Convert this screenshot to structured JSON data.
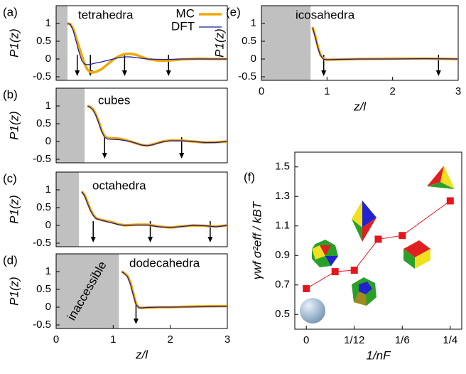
{
  "chart_data": [
    {
      "type": "line",
      "panel_label": "(a)",
      "title": "tetrahedra",
      "y_label": "P1(z)",
      "xlim": [
        0,
        3
      ],
      "ylim": [
        -0.6,
        1.5
      ],
      "yticks": [
        -0.5,
        0,
        0.5,
        1
      ],
      "excluded_region": [
        0,
        0.2
      ],
      "arrows": [
        0.37,
        0.6,
        1.2,
        1.97
      ],
      "legend": "upper right",
      "x": [
        0.2,
        0.25,
        0.3,
        0.35,
        0.4,
        0.45,
        0.5,
        0.55,
        0.6,
        0.65,
        0.7,
        0.8,
        0.9,
        1.0,
        1.1,
        1.2,
        1.3,
        1.4,
        1.5,
        1.6,
        1.8,
        2.0,
        2.2,
        2.5,
        2.8,
        3.0
      ],
      "series": [
        {
          "name": "MC",
          "color": "#f0a800",
          "values": [
            1.0,
            0.98,
            0.85,
            0.6,
            0.35,
            0.1,
            -0.15,
            -0.3,
            -0.37,
            -0.38,
            -0.36,
            -0.28,
            -0.15,
            -0.02,
            0.08,
            0.14,
            0.15,
            0.12,
            0.06,
            0.0,
            -0.05,
            -0.04,
            -0.01,
            0.01,
            0.0,
            0.0
          ]
        },
        {
          "name": "DFT",
          "color": "#1a1aa0",
          "values": [
            1.0,
            0.97,
            0.8,
            0.5,
            0.2,
            -0.05,
            -0.14,
            -0.16,
            -0.15,
            -0.13,
            -0.11,
            -0.08,
            -0.04,
            0.0,
            0.04,
            0.06,
            0.06,
            0.04,
            0.02,
            0.0,
            -0.01,
            -0.01,
            0.0,
            0.0,
            0.0,
            0.0
          ]
        }
      ]
    },
    {
      "type": "line",
      "panel_label": "(b)",
      "title": "cubes",
      "y_label": "P1(z)",
      "xlim": [
        0,
        3
      ],
      "ylim": [
        -0.6,
        1.5
      ],
      "yticks": [
        -0.5,
        0,
        0.5,
        1
      ],
      "excluded_region": [
        0,
        0.5
      ],
      "arrows": [
        0.85,
        2.2
      ],
      "x": [
        0.55,
        0.6,
        0.65,
        0.7,
        0.75,
        0.8,
        0.85,
        0.9,
        1.0,
        1.1,
        1.2,
        1.3,
        1.4,
        1.5,
        1.6,
        1.7,
        1.8,
        1.9,
        2.0,
        2.2,
        2.4,
        2.6,
        2.8,
        3.0
      ],
      "series": [
        {
          "color": "#f0a800",
          "values": [
            1.0,
            0.97,
            0.9,
            0.75,
            0.55,
            0.3,
            0.15,
            0.1,
            0.09,
            0.08,
            0.05,
            0.0,
            -0.05,
            -0.1,
            -0.11,
            -0.08,
            -0.03,
            0.01,
            0.03,
            0.03,
            0.0,
            -0.03,
            -0.02,
            0.0
          ]
        },
        {
          "color": "#1a1aa0",
          "values": [
            1.0,
            0.96,
            0.88,
            0.72,
            0.5,
            0.28,
            0.12,
            0.07,
            0.06,
            0.05,
            0.03,
            0.0,
            -0.05,
            -0.1,
            -0.12,
            -0.09,
            -0.04,
            0.0,
            0.02,
            0.02,
            0.0,
            -0.03,
            -0.03,
            0.0
          ]
        }
      ]
    },
    {
      "type": "line",
      "panel_label": "(c)",
      "title": "octahedra",
      "y_label": "P1(z)",
      "xlim": [
        0,
        3
      ],
      "ylim": [
        -0.6,
        1.5
      ],
      "yticks": [
        -0.5,
        0,
        0.5,
        1
      ],
      "excluded_region": [
        0,
        0.4
      ],
      "arrows": [
        0.65,
        1.65,
        2.7
      ],
      "x": [
        0.45,
        0.5,
        0.55,
        0.6,
        0.65,
        0.7,
        0.8,
        0.9,
        1.0,
        1.1,
        1.2,
        1.4,
        1.6,
        1.8,
        2.0,
        2.2,
        2.4,
        2.6,
        2.8,
        3.0
      ],
      "series": [
        {
          "color": "#f0a800",
          "values": [
            0.95,
            0.85,
            0.65,
            0.45,
            0.3,
            0.2,
            0.15,
            0.12,
            0.08,
            0.03,
            0.0,
            0.02,
            0.02,
            -0.03,
            -0.06,
            -0.03,
            0.0,
            -0.01,
            -0.03,
            0.0
          ]
        },
        {
          "color": "#1a1aa0",
          "values": [
            0.95,
            0.83,
            0.62,
            0.42,
            0.28,
            0.19,
            0.14,
            0.1,
            0.06,
            0.02,
            0.0,
            0.01,
            0.01,
            -0.04,
            -0.06,
            -0.03,
            0.0,
            -0.01,
            -0.04,
            0.0
          ]
        }
      ]
    },
    {
      "type": "line",
      "panel_label": "(d)",
      "title": "dodecahedra",
      "region_label": "inaccessible",
      "y_label": "P1(z)",
      "x_label": "z/l",
      "xlim": [
        0,
        3
      ],
      "ylim": [
        -0.6,
        1.5
      ],
      "xticks": [
        0,
        1,
        2,
        3
      ],
      "yticks": [
        -0.5,
        0,
        0.5,
        1
      ],
      "excluded_region": [
        0,
        1.1
      ],
      "arrows": [
        1.4
      ],
      "x": [
        1.15,
        1.2,
        1.25,
        1.3,
        1.35,
        1.4,
        1.45,
        1.5,
        1.6,
        1.8,
        2.0,
        2.5,
        3.0
      ],
      "series": [
        {
          "color": "#f0a800",
          "values": [
            1.0,
            0.95,
            0.88,
            0.7,
            0.4,
            0.1,
            -0.01,
            -0.02,
            -0.01,
            0.0,
            0.0,
            0.02,
            0.03
          ]
        },
        {
          "color": "#1a1aa0",
          "values": [
            1.0,
            0.94,
            0.86,
            0.66,
            0.35,
            0.07,
            -0.02,
            -0.02,
            -0.01,
            0.0,
            0.0,
            0.01,
            0.02
          ]
        }
      ]
    },
    {
      "type": "line",
      "panel_label": "(e)",
      "title": "icosahedra",
      "y_label": "P1(z)",
      "x_label": "z/l",
      "xlim": [
        0,
        3
      ],
      "ylim": [
        -0.6,
        1.5
      ],
      "xticks": [
        0,
        1,
        2,
        3
      ],
      "yticks": [
        -0.5,
        0,
        0.5,
        1
      ],
      "excluded_region": [
        0,
        0.75
      ],
      "arrows": [
        0.95,
        2.7
      ],
      "x": [
        0.78,
        0.82,
        0.86,
        0.9,
        0.95,
        1.0,
        1.2,
        1.5,
        2.0,
        2.5,
        3.0
      ],
      "series": [
        {
          "color": "#f0a800",
          "values": [
            0.9,
            0.65,
            0.35,
            0.12,
            0.0,
            -0.02,
            -0.01,
            0.0,
            0.01,
            0.01,
            0.0
          ]
        },
        {
          "color": "#1a1aa0",
          "values": [
            0.88,
            0.62,
            0.32,
            0.1,
            -0.01,
            -0.02,
            -0.01,
            0.0,
            0.0,
            0.01,
            0.0
          ]
        }
      ]
    },
    {
      "type": "markers",
      "panel_label": "(f)",
      "y_label": "γwf σ²eff / kBT",
      "x_label": "1/nF",
      "xlim": [
        -0.02,
        0.27
      ],
      "ylim": [
        0.4,
        1.6
      ],
      "xticks": [
        0,
        {
          "value": 0.08333,
          "label": "1/12"
        },
        {
          "value": 0.16667,
          "label": "1/6"
        },
        {
          "value": 0.25,
          "label": "1/4"
        }
      ],
      "yticks": [
        0.5,
        0.7,
        0.9,
        1.1,
        1.3,
        1.5
      ],
      "x": [
        0,
        0.05,
        0.08333,
        0.125,
        0.16667,
        0.25
      ],
      "series": [
        {
          "color": "#e8141b",
          "values": [
            0.675,
            0.79,
            0.8,
            1.01,
            1.035,
            1.27
          ]
        }
      ]
    }
  ]
}
